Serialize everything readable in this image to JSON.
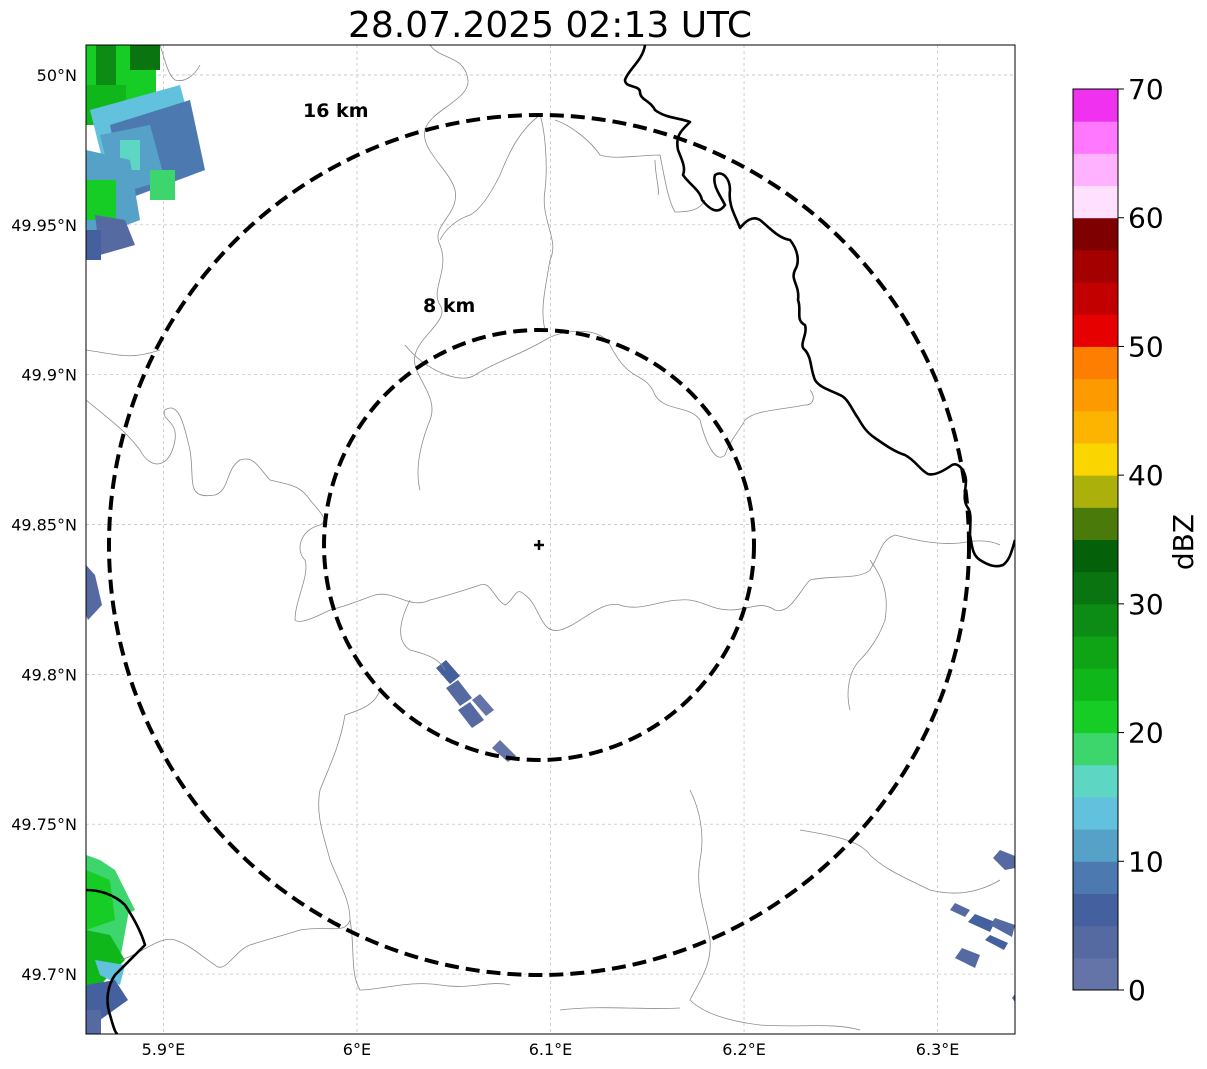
{
  "title": "28.07.2025 02:13 UTC",
  "map": {
    "lon_range": [
      5.86,
      6.34
    ],
    "lat_range": [
      49.68,
      50.01
    ],
    "center": {
      "lon": 6.095,
      "lat": 49.843
    },
    "x_ticks": [
      {
        "value": 5.9,
        "label": "5.9°E"
      },
      {
        "value": 6.0,
        "label": "6°E"
      },
      {
        "value": 6.1,
        "label": "6.1°E"
      },
      {
        "value": 6.2,
        "label": "6.2°E"
      },
      {
        "value": 6.3,
        "label": "6.3°E"
      }
    ],
    "y_ticks": [
      {
        "value": 50.0,
        "label": "50°N"
      },
      {
        "value": 49.95,
        "label": "49.95°N"
      },
      {
        "value": 49.9,
        "label": "49.9°N"
      },
      {
        "value": 49.85,
        "label": "49.85°N"
      },
      {
        "value": 49.8,
        "label": "49.8°N"
      },
      {
        "value": 49.75,
        "label": "49.75°N"
      },
      {
        "value": 49.7,
        "label": "49.7°N"
      }
    ],
    "gridlines": true,
    "range_rings": [
      {
        "km": 8,
        "label": "8 km"
      },
      {
        "km": 16,
        "label": "16 km"
      }
    ]
  },
  "colorbar": {
    "label": "dBZ",
    "min": 0,
    "max": 70,
    "ticks": [
      "0",
      "10",
      "20",
      "30",
      "40",
      "50",
      "60",
      "70"
    ],
    "colors": [
      "#6474a8",
      "#566aa2",
      "#45609f",
      "#4c7ab0",
      "#55a1c7",
      "#62c1dd",
      "#5ed6c4",
      "#3cd66c",
      "#15cd24",
      "#10b71a",
      "#0fa316",
      "#0c8c14",
      "#0a7410",
      "#05600a",
      "#4a7a0a",
      "#acb00a",
      "#fbd500",
      "#fcb400",
      "#fd9a00",
      "#fd7e00",
      "#e60000",
      "#c30000",
      "#a40000",
      "#7e0000",
      "#ffe0ff",
      "#ffb2ff",
      "#ff78ff",
      "#f032f0"
    ]
  }
}
